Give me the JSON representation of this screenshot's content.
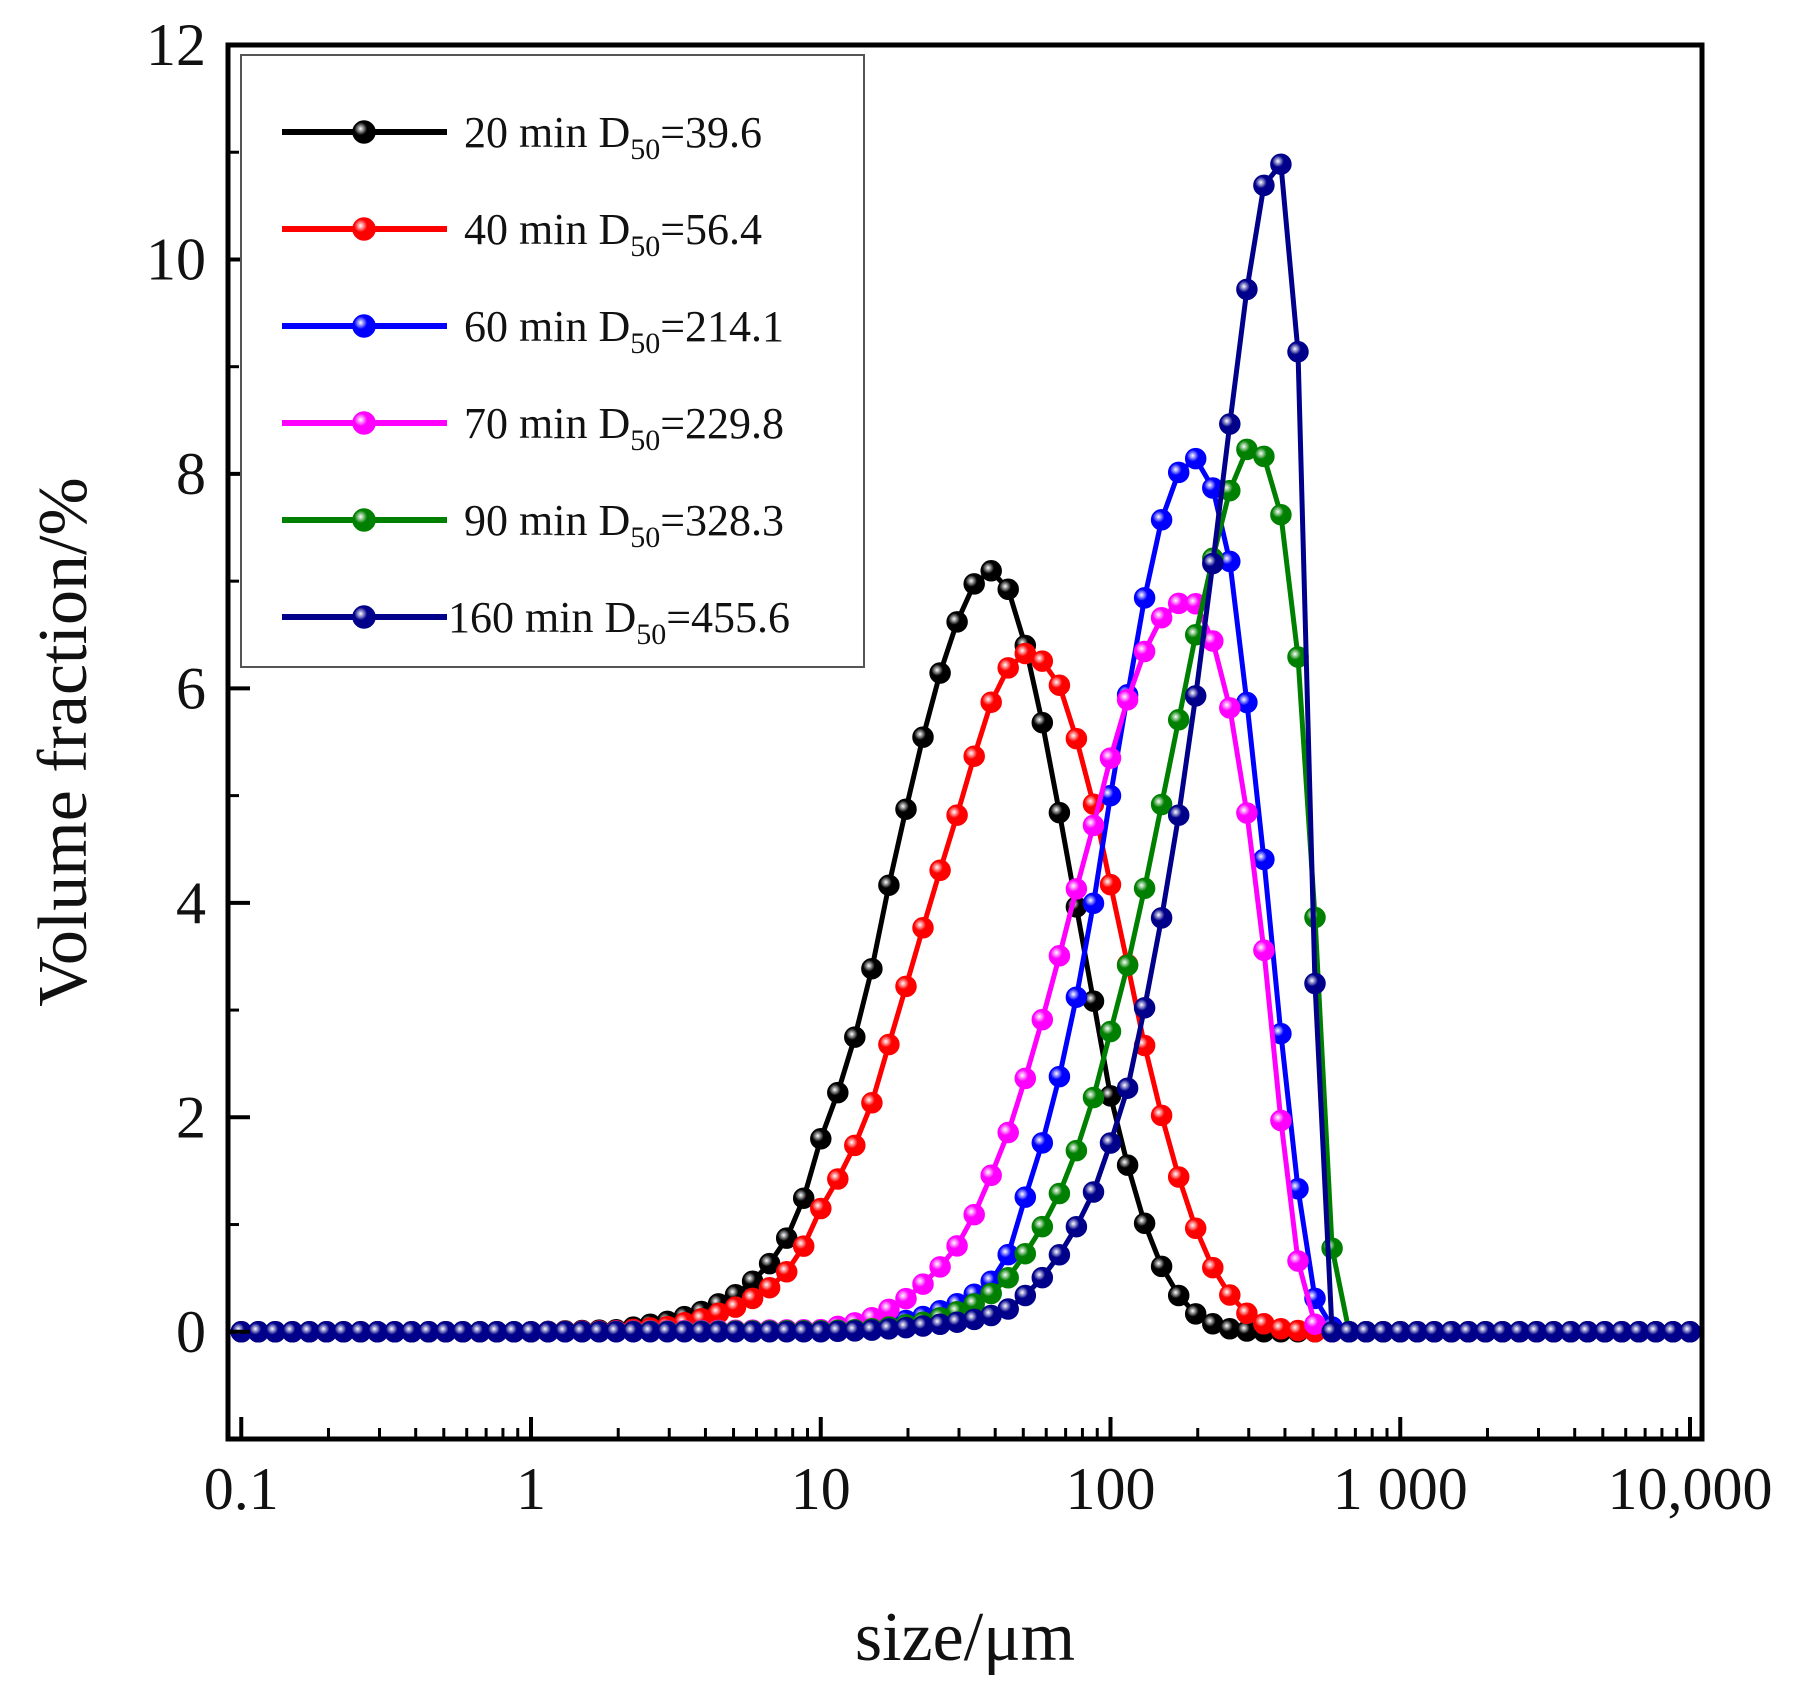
{
  "chart_data": {
    "type": "line",
    "title": "",
    "xlabel": "size/μm",
    "ylabel": "Volume fraction/%",
    "xscale": "log",
    "xlim": [
      0.09,
      11000
    ],
    "ylim": [
      -1,
      12
    ],
    "xticks": [
      {
        "value": 0.1,
        "label": "0.1"
      },
      {
        "value": 1,
        "label": "1"
      },
      {
        "value": 10,
        "label": "10"
      },
      {
        "value": 100,
        "label": "100"
      },
      {
        "value": 1000,
        "label": "1 000"
      },
      {
        "value": 10000,
        "label": "10,000"
      }
    ],
    "yticks": [
      {
        "value": 0,
        "label": "0"
      },
      {
        "value": 2,
        "label": "2"
      },
      {
        "value": 4,
        "label": "4"
      },
      {
        "value": 6,
        "label": "6"
      },
      {
        "value": 8,
        "label": "8"
      },
      {
        "value": 10,
        "label": "10"
      },
      {
        "value": 12,
        "label": "12"
      }
    ],
    "grid": false,
    "legend_position": "top-left",
    "series": [
      {
        "name": "20 min",
        "label_prefix": "20 min D",
        "label_sub": "50",
        "label_suffix": "=39.6",
        "color": "#000000",
        "x": [
          0.1,
          0.2,
          0.5,
          1,
          2,
          3,
          4,
          5,
          6,
          7,
          8,
          9,
          10,
          12,
          14,
          16,
          18,
          21,
          24,
          28,
          32,
          36,
          40,
          45,
          50,
          56,
          63,
          71,
          80,
          90,
          100,
          113,
          127,
          142,
          160,
          180,
          202,
          227,
          255,
          286,
          322,
          361,
          405,
          455,
          511,
          574,
          645,
          724,
          1000,
          2000,
          5000,
          10000
        ],
        "y": [
          0,
          0,
          0,
          0,
          0.02,
          0.1,
          0.2,
          0.33,
          0.5,
          0.7,
          0.97,
          1.34,
          1.8,
          2.38,
          3.02,
          3.72,
          4.45,
          5.18,
          5.87,
          6.45,
          6.87,
          7.09,
          7.1,
          6.9,
          6.48,
          5.91,
          5.2,
          4.43,
          3.65,
          2.89,
          2.2,
          1.61,
          1.12,
          0.74,
          0.46,
          0.26,
          0.14,
          0.07,
          0.03,
          0.01,
          0,
          0,
          0,
          0,
          0,
          0,
          0,
          0,
          0,
          0,
          0,
          0
        ]
      },
      {
        "name": "40 min",
        "label_prefix": "40 min D",
        "label_sub": "50",
        "label_suffix": "=56.4",
        "color": "#ff0000",
        "x": [
          0.1,
          0.2,
          0.5,
          1,
          2,
          3,
          4,
          5,
          6,
          7,
          8,
          9,
          10,
          12,
          14,
          16,
          18,
          21,
          24,
          28,
          32,
          36,
          40,
          45,
          50,
          56,
          63,
          71,
          80,
          90,
          100,
          113,
          127,
          142,
          160,
          180,
          202,
          227,
          255,
          286,
          322,
          361,
          405,
          455,
          511,
          574,
          645,
          724,
          812,
          900,
          1000,
          2000,
          5000,
          10000
        ],
        "y": [
          0,
          0,
          0,
          0,
          0.01,
          0.05,
          0.13,
          0.22,
          0.33,
          0.45,
          0.62,
          0.86,
          1.15,
          1.52,
          1.9,
          2.35,
          2.89,
          3.46,
          4.04,
          4.6,
          5.14,
          5.62,
          5.98,
          6.22,
          6.33,
          6.3,
          6.16,
          5.88,
          5.3,
          4.79,
          4.17,
          3.5,
          2.83,
          2.27,
          1.73,
          1.26,
          0.88,
          0.58,
          0.36,
          0.2,
          0.1,
          0.04,
          0.02,
          0.01,
          0,
          0,
          0,
          0,
          0,
          0,
          0,
          0,
          0,
          0
        ]
      },
      {
        "name": "60 min",
        "label_prefix": "60 min D",
        "label_sub": "50",
        "label_suffix": "=214.1",
        "color": "#0000ff",
        "x": [
          0.1,
          1,
          10,
          14,
          18,
          24,
          32,
          40,
          45,
          50,
          56,
          63,
          71,
          80,
          90,
          100,
          113,
          127,
          142,
          160,
          180,
          202,
          227,
          255,
          286,
          322,
          361,
          405,
          455,
          511,
          574,
          645,
          724,
          812,
          900,
          1000,
          2000,
          5000,
          10000
        ],
        "y": [
          0,
          0,
          0.01,
          0.03,
          0.08,
          0.16,
          0.3,
          0.5,
          0.75,
          1.2,
          1.6,
          2.1,
          2.7,
          3.4,
          4.2,
          5.0,
          5.85,
          6.65,
          7.33,
          7.85,
          8.12,
          8.15,
          7.85,
          7.3,
          6.2,
          5.0,
          3.63,
          2.25,
          1.08,
          0.27,
          0.05,
          0.0,
          0,
          0,
          0,
          0,
          0,
          0,
          0
        ]
      },
      {
        "name": "70 min",
        "label_prefix": "70 min D",
        "label_sub": "50",
        "label_suffix": "=229.8",
        "color": "#ff00ff",
        "x": [
          0.1,
          1,
          10,
          12,
          14,
          16,
          18,
          21,
          24,
          28,
          32,
          36,
          40,
          45,
          50,
          56,
          63,
          71,
          80,
          90,
          100,
          113,
          127,
          142,
          160,
          180,
          202,
          227,
          255,
          286,
          322,
          361,
          405,
          455,
          511,
          574,
          645,
          724,
          812,
          900,
          1000,
          2000,
          5000,
          10000
        ],
        "y": [
          0,
          0,
          0.02,
          0.06,
          0.1,
          0.16,
          0.24,
          0.36,
          0.52,
          0.7,
          0.95,
          1.25,
          1.55,
          1.9,
          2.3,
          2.75,
          3.25,
          3.8,
          4.35,
          4.85,
          5.35,
          5.85,
          6.25,
          6.58,
          6.75,
          6.82,
          6.78,
          6.42,
          5.9,
          5.12,
          4.1,
          2.85,
          1.42,
          0.45,
          0.05,
          0.0,
          0,
          0,
          0,
          0,
          0,
          0,
          0,
          0
        ]
      },
      {
        "name": "90 min",
        "label_prefix": "90 min D",
        "label_sub": "50",
        "label_suffix": "=328.3",
        "color": "#008000",
        "x": [
          0.1,
          1,
          10,
          14,
          18,
          24,
          32,
          40,
          45,
          50,
          56,
          63,
          71,
          80,
          90,
          100,
          113,
          127,
          142,
          160,
          180,
          202,
          227,
          255,
          286,
          322,
          361,
          405,
          455,
          511,
          574,
          645,
          724,
          812,
          900,
          1000,
          2000,
          5000,
          10000
        ],
        "y": [
          0,
          0,
          0.01,
          0.02,
          0.05,
          0.1,
          0.22,
          0.38,
          0.52,
          0.7,
          0.9,
          1.15,
          1.45,
          1.85,
          2.3,
          2.8,
          3.35,
          3.95,
          4.6,
          5.28,
          5.98,
          6.65,
          7.25,
          7.8,
          8.22,
          8.25,
          8.05,
          7.35,
          6.0,
          3.75,
          0.88,
          0.0,
          0,
          0,
          0,
          0,
          0,
          0,
          0
        ]
      },
      {
        "name": "160 min",
        "label_prefix": "160 min D",
        "label_sub": "50",
        "label_suffix": "=455.6",
        "color": "#00008b",
        "x": [
          0.1,
          0.2,
          0.5,
          1,
          2,
          5,
          10,
          14,
          18,
          24,
          32,
          40,
          45,
          50,
          56,
          63,
          71,
          80,
          90,
          100,
          113,
          127,
          142,
          160,
          180,
          202,
          227,
          255,
          286,
          322,
          361,
          405,
          455,
          511,
          574,
          645,
          724,
          812,
          900,
          1000,
          1200,
          2000,
          3000,
          5000,
          7000,
          10000
        ],
        "y": [
          0,
          0,
          0,
          0,
          0,
          0,
          0.0,
          0.01,
          0.03,
          0.06,
          0.1,
          0.16,
          0.22,
          0.32,
          0.45,
          0.62,
          0.83,
          1.08,
          1.38,
          1.76,
          2.2,
          2.83,
          3.5,
          4.27,
          5.17,
          6.15,
          7.23,
          8.35,
          9.45,
          10.43,
          11.03,
          10.8,
          8.68,
          2.96,
          0.0,
          0,
          0,
          0,
          0,
          0,
          0,
          0,
          0,
          0,
          0,
          0
        ]
      }
    ]
  }
}
